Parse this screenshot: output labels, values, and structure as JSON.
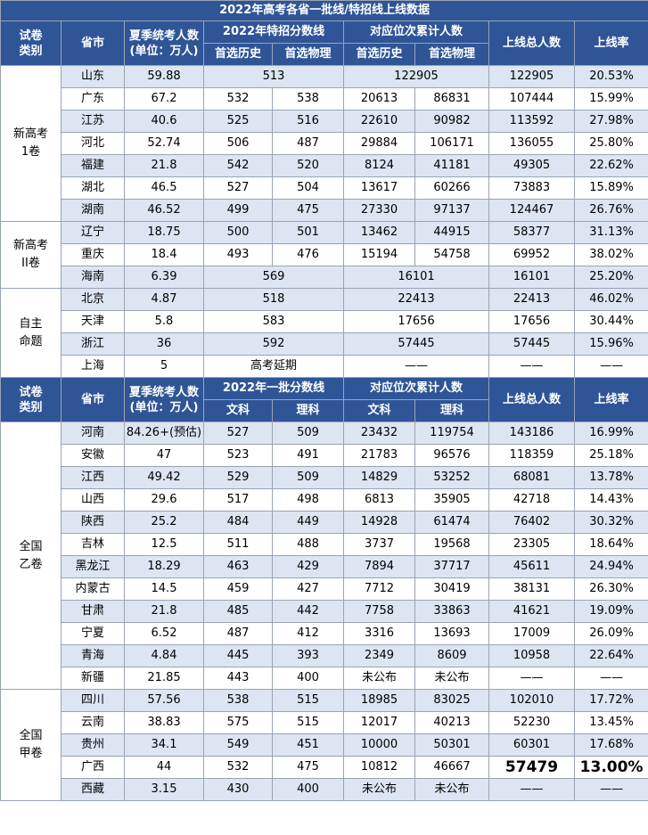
{
  "title": "2022年高考各省一批线/特招线上线数据",
  "header1": {
    "category": [
      "试卷",
      "类别"
    ],
    "province": "省市",
    "examinees": [
      "夏季统考人数",
      "(单位：万人)"
    ],
    "score_group": "2022年特招分数线",
    "rank_group": "对应位次累计人数",
    "sub_history": "首选历史",
    "sub_physics": "首选物理",
    "total": "上线总人数",
    "rate": "上线率"
  },
  "group1": {
    "g1": [
      "新高考",
      "1卷"
    ],
    "g2": [
      "新高考",
      "II卷"
    ],
    "g3": [
      "自主",
      "命题"
    ],
    "rows": [
      {
        "p": "山东",
        "n": "59.88",
        "s": "513",
        "r": "122905",
        "t": "122905",
        "rate": "20.53%"
      },
      {
        "p": "广东",
        "n": "67.2",
        "s1": "532",
        "s2": "538",
        "r1": "20613",
        "r2": "86831",
        "t": "107444",
        "rate": "15.99%"
      },
      {
        "p": "江苏",
        "n": "40.6",
        "s1": "525",
        "s2": "516",
        "r1": "22610",
        "r2": "90982",
        "t": "113592",
        "rate": "27.98%"
      },
      {
        "p": "河北",
        "n": "52.74",
        "s1": "506",
        "s2": "487",
        "r1": "29884",
        "r2": "106171",
        "t": "136055",
        "rate": "25.80%"
      },
      {
        "p": "福建",
        "n": "21.8",
        "s1": "542",
        "s2": "520",
        "r1": "8124",
        "r2": "41181",
        "t": "49305",
        "rate": "22.62%"
      },
      {
        "p": "湖北",
        "n": "46.5",
        "s1": "527",
        "s2": "504",
        "r1": "13617",
        "r2": "60266",
        "t": "73883",
        "rate": "15.89%"
      },
      {
        "p": "湖南",
        "n": "46.52",
        "s1": "499",
        "s2": "475",
        "r1": "27330",
        "r2": "97137",
        "t": "124467",
        "rate": "26.76%"
      },
      {
        "p": "辽宁",
        "n": "18.75",
        "s1": "500",
        "s2": "501",
        "r1": "13462",
        "r2": "44915",
        "t": "58377",
        "rate": "31.13%"
      },
      {
        "p": "重庆",
        "n": "18.4",
        "s1": "493",
        "s2": "476",
        "r1": "15194",
        "r2": "54758",
        "t": "69952",
        "rate": "38.02%"
      },
      {
        "p": "海南",
        "n": "6.39",
        "s": "569",
        "r": "16101",
        "t": "16101",
        "rate": "25.20%"
      },
      {
        "p": "北京",
        "n": "4.87",
        "s": "518",
        "r": "22413",
        "t": "22413",
        "rate": "46.02%"
      },
      {
        "p": "天津",
        "n": "5.8",
        "s": "583",
        "r": "17656",
        "t": "17656",
        "rate": "30.44%"
      },
      {
        "p": "浙江",
        "n": "36",
        "s": "592",
        "r": "57445",
        "t": "57445",
        "rate": "15.96%"
      },
      {
        "p": "上海",
        "n": "5",
        "s": "高考延期",
        "r": "——",
        "t": "——",
        "rate": "——"
      }
    ]
  },
  "header2": {
    "category": [
      "试卷",
      "类别"
    ],
    "province": "省市",
    "examinees": [
      "夏季统考人数",
      "(单位：万人)"
    ],
    "score_group": "2022年一批分数线",
    "rank_group": "对应位次累计人数",
    "sub_arts": "文科",
    "sub_science": "理科",
    "total": "上线总人数",
    "rate": "上线率"
  },
  "group2": {
    "g4": [
      "全国",
      "乙卷"
    ],
    "g5": [
      "全国",
      "甲卷"
    ],
    "rows": [
      {
        "p": "河南",
        "n": "84.26+(预估)",
        "s1": "527",
        "s2": "509",
        "r1": "23432",
        "r2": "119754",
        "t": "143186",
        "rate": "16.99%"
      },
      {
        "p": "安徽",
        "n": "47",
        "s1": "523",
        "s2": "491",
        "r1": "21783",
        "r2": "96576",
        "t": "118359",
        "rate": "25.18%"
      },
      {
        "p": "江西",
        "n": "49.42",
        "s1": "529",
        "s2": "509",
        "r1": "14829",
        "r2": "53252",
        "t": "68081",
        "rate": "13.78%"
      },
      {
        "p": "山西",
        "n": "29.6",
        "s1": "517",
        "s2": "498",
        "r1": "6813",
        "r2": "35905",
        "t": "42718",
        "rate": "14.43%"
      },
      {
        "p": "陕西",
        "n": "25.2",
        "s1": "484",
        "s2": "449",
        "r1": "14928",
        "r2": "61474",
        "t": "76402",
        "rate": "30.32%"
      },
      {
        "p": "吉林",
        "n": "12.5",
        "s1": "511",
        "s2": "488",
        "r1": "3737",
        "r2": "19568",
        "t": "23305",
        "rate": "18.64%"
      },
      {
        "p": "黑龙江",
        "n": "18.29",
        "s1": "463",
        "s2": "429",
        "r1": "7894",
        "r2": "37717",
        "t": "45611",
        "rate": "24.94%"
      },
      {
        "p": "内蒙古",
        "n": "14.5",
        "s1": "459",
        "s2": "427",
        "r1": "7712",
        "r2": "30419",
        "t": "38131",
        "rate": "26.30%"
      },
      {
        "p": "甘肃",
        "n": "21.8",
        "s1": "485",
        "s2": "442",
        "r1": "7758",
        "r2": "33863",
        "t": "41621",
        "rate": "19.09%"
      },
      {
        "p": "宁夏",
        "n": "6.52",
        "s1": "487",
        "s2": "412",
        "r1": "3316",
        "r2": "13693",
        "t": "17009",
        "rate": "26.09%"
      },
      {
        "p": "青海",
        "n": "4.84",
        "s1": "445",
        "s2": "393",
        "r1": "2349",
        "r2": "8609",
        "t": "10958",
        "rate": "22.64%"
      },
      {
        "p": "新疆",
        "n": "21.85",
        "s1": "443",
        "s2": "400",
        "r1": "未公布",
        "r2": "未公布",
        "t": "——",
        "rate": "——"
      },
      {
        "p": "四川",
        "n": "57.56",
        "s1": "538",
        "s2": "515",
        "r1": "18985",
        "r2": "83025",
        "t": "102010",
        "rate": "17.72%"
      },
      {
        "p": "云南",
        "n": "38.83",
        "s1": "575",
        "s2": "515",
        "r1": "12017",
        "r2": "40213",
        "t": "52230",
        "rate": "13.45%"
      },
      {
        "p": "贵州",
        "n": "34.1",
        "s1": "549",
        "s2": "451",
        "r1": "10000",
        "r2": "50301",
        "t": "60301",
        "rate": "17.68%"
      },
      {
        "p": "广西",
        "n": "44",
        "s1": "532",
        "s2": "475",
        "r1": "10812",
        "r2": "46667",
        "t": "57479",
        "rate": "13.00%"
      },
      {
        "p": "西藏",
        "n": "3.15",
        "s1": "430",
        "s2": "400",
        "r1": "未公布",
        "r2": "未公布",
        "t": "——",
        "rate": "——"
      }
    ]
  }
}
